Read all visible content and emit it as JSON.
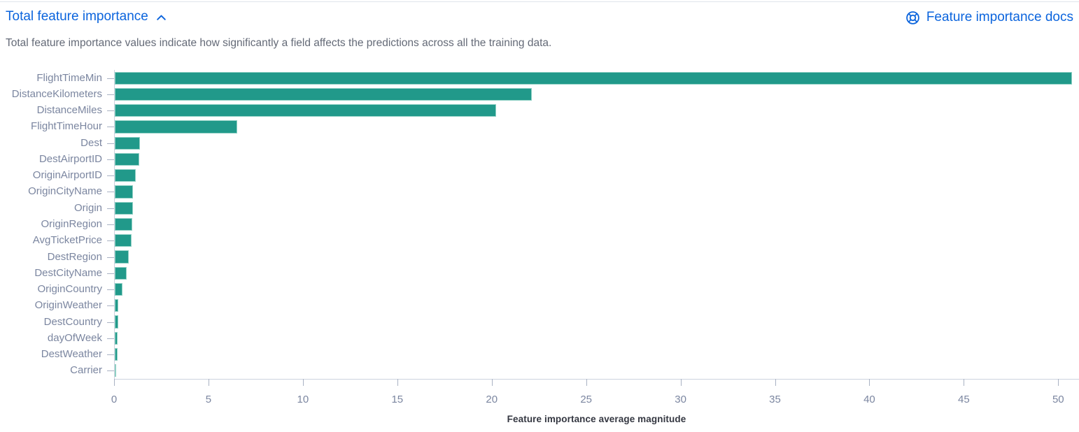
{
  "header": {
    "title": "Total feature importance",
    "collapse_icon": "chevron-up-icon",
    "docs_link_label": "Feature importance docs",
    "docs_icon": "help-lifebuoy-icon",
    "link_color": "#0b64dd"
  },
  "description": "Total feature importance values indicate how significantly a field affects the predictions across all the training data.",
  "chart_data": {
    "type": "bar",
    "orientation": "horizontal",
    "title": "",
    "xlabel": "Feature importance average magnitude",
    "ylabel": "",
    "categories": [
      "FlightTimeMin",
      "DistanceKilometers",
      "DistanceMiles",
      "FlightTimeHour",
      "Dest",
      "DestAirportID",
      "OriginAirportID",
      "OriginCityName",
      "Origin",
      "OriginRegion",
      "AvgTicketPrice",
      "DestRegion",
      "DestCityName",
      "OriginCountry",
      "OriginWeather",
      "DestCountry",
      "dayOfWeek",
      "DestWeather",
      "Carrier"
    ],
    "values": [
      50.7,
      22.1,
      20.2,
      6.5,
      1.35,
      1.3,
      1.1,
      0.98,
      0.95,
      0.92,
      0.88,
      0.73,
      0.62,
      0.42,
      0.2,
      0.17,
      0.14,
      0.13,
      0.06
    ],
    "x_ticks": [
      0,
      5,
      10,
      15,
      20,
      25,
      30,
      35,
      40,
      45,
      50
    ],
    "xlim": [
      0,
      51.1
    ],
    "grid": false,
    "legend": false,
    "bar_color": "#21998a",
    "bar_border_color": "#8fd0c4",
    "tick_label_color": "#7b86a0",
    "axis_line_color": "#ccd3de"
  }
}
